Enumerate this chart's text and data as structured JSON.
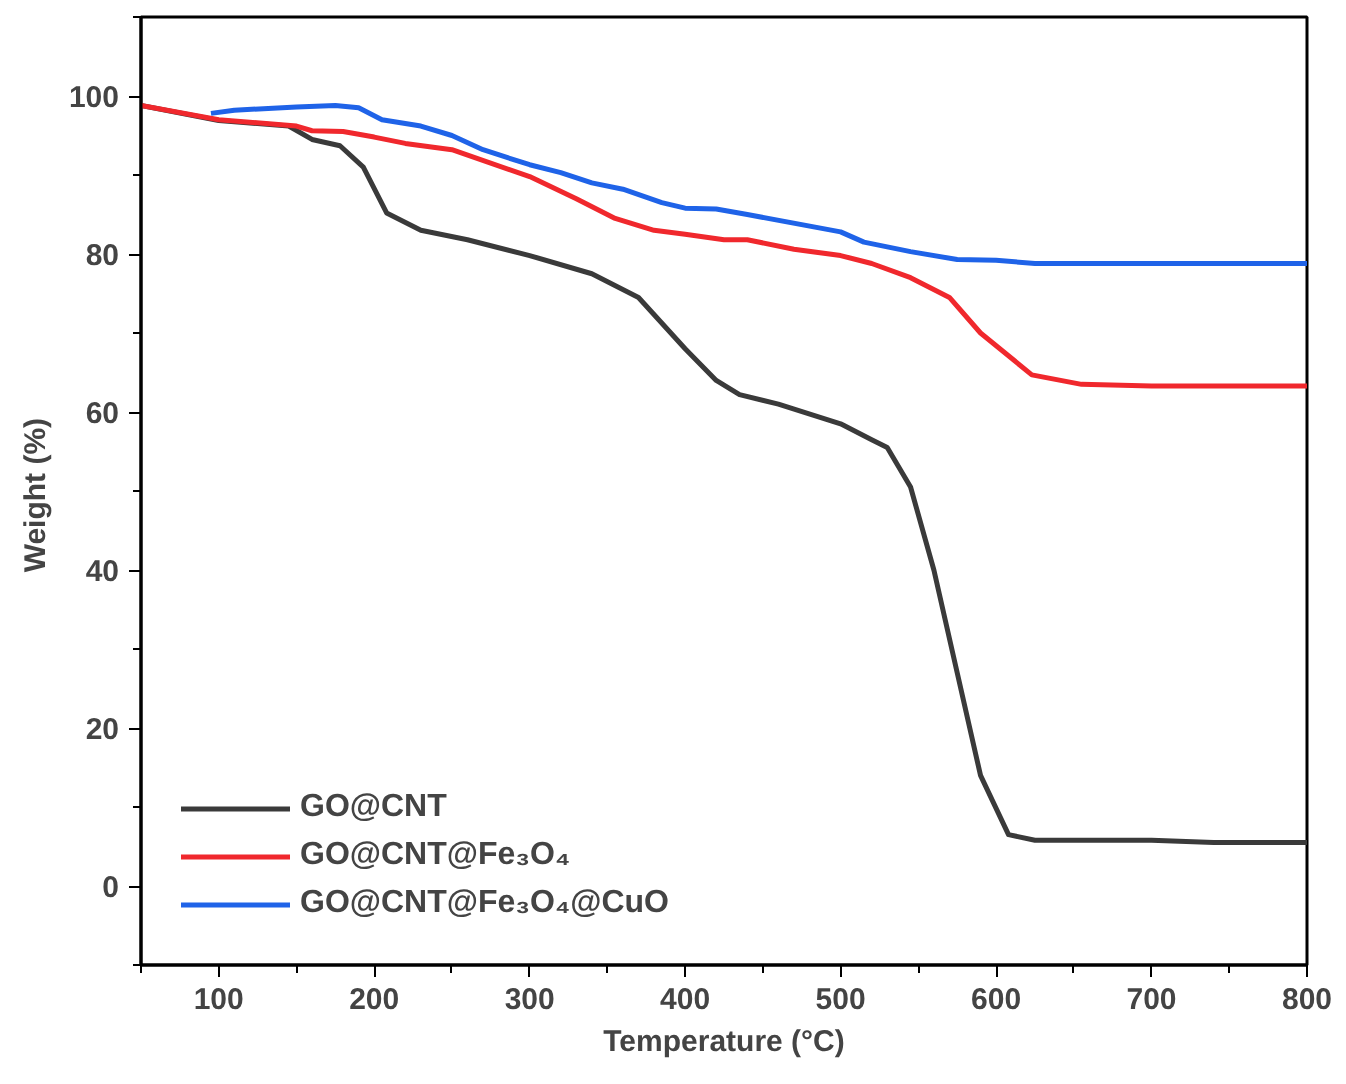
{
  "chart_data": {
    "type": "line",
    "xlabel": "Temperature (°C)",
    "ylabel": "Weight  (%)",
    "xlim": [
      50,
      800
    ],
    "ylim": [
      -10,
      110
    ],
    "xticks": [
      100,
      200,
      300,
      400,
      500,
      600,
      700,
      800
    ],
    "yticks": [
      0,
      20,
      40,
      60,
      80,
      100
    ],
    "grid": false,
    "legend": "bottom left",
    "marker": "none",
    "line_style": "solid",
    "series": [
      {
        "name": "GO@CNT",
        "color": "#3a3a3a",
        "x": [
          50,
          100,
          145,
          160,
          178,
          193,
          208,
          230,
          260,
          300,
          340,
          370,
          400,
          420,
          435,
          460,
          500,
          520,
          530,
          545,
          560,
          575,
          590,
          608,
          625,
          700,
          740,
          800
        ],
        "values": [
          98.8,
          96.9,
          96.2,
          94.5,
          93.7,
          91,
          85.2,
          83,
          81.8,
          79.8,
          77.5,
          74.5,
          68,
          64,
          62.2,
          61,
          58.5,
          56.5,
          55.5,
          50.5,
          40,
          27,
          14,
          6.5,
          5.8,
          5.8,
          5.5,
          5.5
        ]
      },
      {
        "name": "GO@CNT@Fe₃O₄",
        "color": "#f0282d",
        "x": [
          50,
          100,
          150,
          160,
          180,
          200,
          220,
          250,
          300,
          330,
          355,
          380,
          400,
          425,
          440,
          470,
          500,
          520,
          545,
          570,
          590,
          623,
          655,
          700,
          800
        ],
        "values": [
          98.8,
          97,
          96.2,
          95.6,
          95.5,
          94.8,
          94,
          93.2,
          89.8,
          87,
          84.5,
          83,
          82.5,
          81.8,
          81.8,
          80.6,
          79.8,
          78.8,
          77,
          74.5,
          70,
          64.7,
          63.5,
          63.3,
          63.3
        ]
      },
      {
        "name": "GO@CNT@Fe₃O₄@CuO",
        "color": "#1f63e8",
        "x": [
          95,
          110,
          150,
          175,
          190,
          205,
          230,
          250,
          270,
          300,
          320,
          340,
          360,
          385,
          400,
          420,
          440,
          500,
          515,
          545,
          575,
          600,
          625,
          700,
          800
        ],
        "values": [
          97.8,
          98.2,
          98.6,
          98.8,
          98.5,
          97,
          96.2,
          95,
          93.2,
          91.3,
          90.3,
          89,
          88.2,
          86.5,
          85.8,
          85.7,
          85,
          82.8,
          81.5,
          80.3,
          79.3,
          79.2,
          78.8,
          78.8,
          78.8
        ]
      }
    ]
  }
}
